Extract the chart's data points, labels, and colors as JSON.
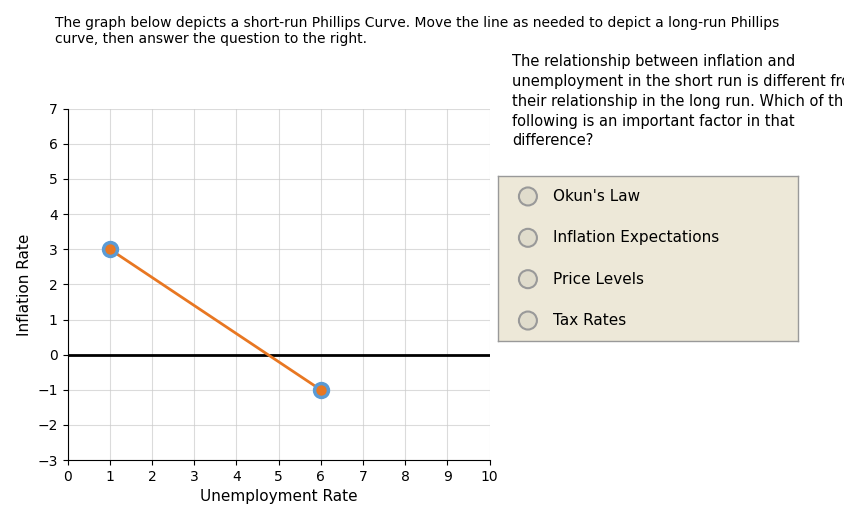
{
  "title_text": "The graph below depicts a short-run Phillips Curve. Move the line as needed to depict a long-run Phillips\ncurve, then answer the question to the right.",
  "xlabel": "Unemployment Rate",
  "ylabel": "Inflation Rate",
  "xlim": [
    0,
    10
  ],
  "ylim": [
    -3,
    7
  ],
  "xticks": [
    0,
    1,
    2,
    3,
    4,
    5,
    6,
    7,
    8,
    9,
    10
  ],
  "yticks": [
    -3,
    -2,
    -1,
    0,
    1,
    2,
    3,
    4,
    5,
    6,
    7
  ],
  "line_x": [
    1,
    6
  ],
  "line_y": [
    3,
    -1
  ],
  "line_color": "#E87722",
  "point_fill": "#E87722",
  "point_edge_color": "#5B9BD5",
  "point_size": 100,
  "point_edge_width": 2.5,
  "hline_y": 0,
  "hline_color": "black",
  "hline_lw": 2,
  "grid_color": "#CCCCCC",
  "grid_alpha": 0.7,
  "background_color": "#FFFFFF",
  "question_text": "The relationship between inflation and\nunemployment in the short run is different from\ntheir relationship in the long run. Which of the\nfollowing is an important factor in that\ndifference?",
  "options": [
    "Okun's Law",
    "Inflation Expectations",
    "Price Levels",
    "Tax Rates"
  ],
  "option_box_facecolor": "#EDE8D8",
  "option_box_edgecolor": "#999999",
  "radio_facecolor": "#E0DCCC",
  "radio_edgecolor": "#999999",
  "title_fontsize": 10,
  "axis_label_fontsize": 11,
  "tick_fontsize": 10,
  "question_fontsize": 10.5,
  "option_fontsize": 11
}
